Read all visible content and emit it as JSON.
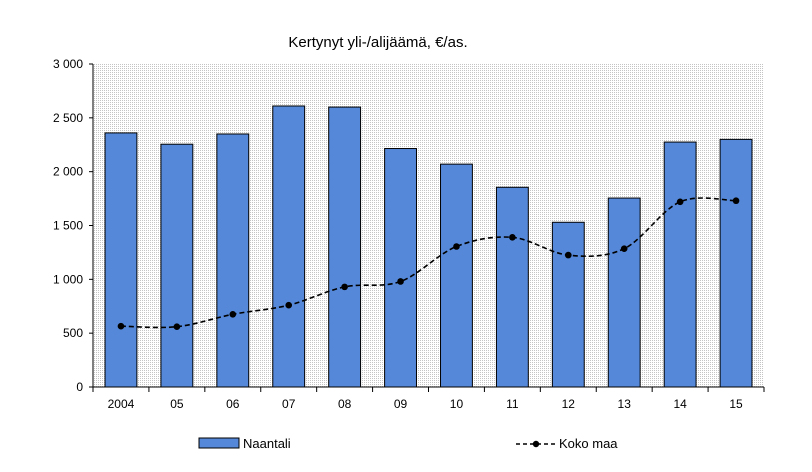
{
  "chart_data": {
    "type": "bar",
    "title": "Kertynyt  yli-/alijäämä,  €/as.",
    "categories": [
      "2004",
      "05",
      "06",
      "07",
      "08",
      "09",
      "10",
      "11",
      "12",
      "13",
      "14",
      "15"
    ],
    "series": [
      {
        "name": "Naantali",
        "kind": "bar",
        "color": "#5588d8",
        "values": [
          2360,
          2255,
          2350,
          2610,
          2600,
          2215,
          2070,
          1855,
          1530,
          1755,
          2275,
          2300
        ]
      },
      {
        "name": "Koko maa",
        "kind": "line",
        "style": "dashed with dot markers",
        "color": "#000000",
        "values": [
          565,
          560,
          675,
          760,
          930,
          980,
          1305,
          1390,
          1225,
          1285,
          1720,
          1730
        ]
      }
    ],
    "ylim": [
      0,
      3000
    ],
    "yticks": [
      0,
      500,
      1000,
      1500,
      2000,
      2500,
      3000
    ],
    "ytick_labels": [
      "0",
      "500",
      "1 000",
      "1 500",
      "2 000",
      "2 500",
      "3 000"
    ],
    "xlabel": "",
    "ylabel": "",
    "grid": false,
    "plot_background": "dotted gray",
    "legend_position": "bottom"
  }
}
